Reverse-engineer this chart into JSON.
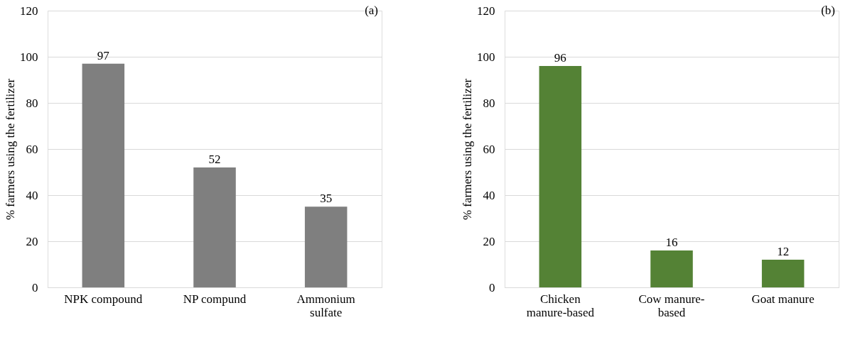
{
  "chart_data": [
    {
      "type": "bar",
      "categories": [
        "NPK compound",
        "NP compund",
        "Ammonium\nsulfate"
      ],
      "values": [
        97,
        52,
        35
      ],
      "color": "#7f7f7f",
      "ylabel": "% farmers using the fertilizer",
      "ylim": [
        0,
        120
      ],
      "yticks": [
        0,
        20,
        40,
        60,
        80,
        100,
        120
      ],
      "grid": "y",
      "data_labels": true,
      "annotations": [
        "(a)"
      ]
    },
    {
      "type": "bar",
      "categories": [
        "Chicken\nmanure-based",
        "Cow manure-\nbased",
        "Goat manure"
      ],
      "values": [
        96,
        16,
        12
      ],
      "color": "#548235",
      "ylabel": "% farmers using the fertilizer",
      "ylim": [
        0,
        120
      ],
      "yticks": [
        0,
        20,
        40,
        60,
        80,
        100,
        120
      ],
      "grid": "y",
      "data_labels": true,
      "annotations": [
        "(b)"
      ]
    }
  ]
}
